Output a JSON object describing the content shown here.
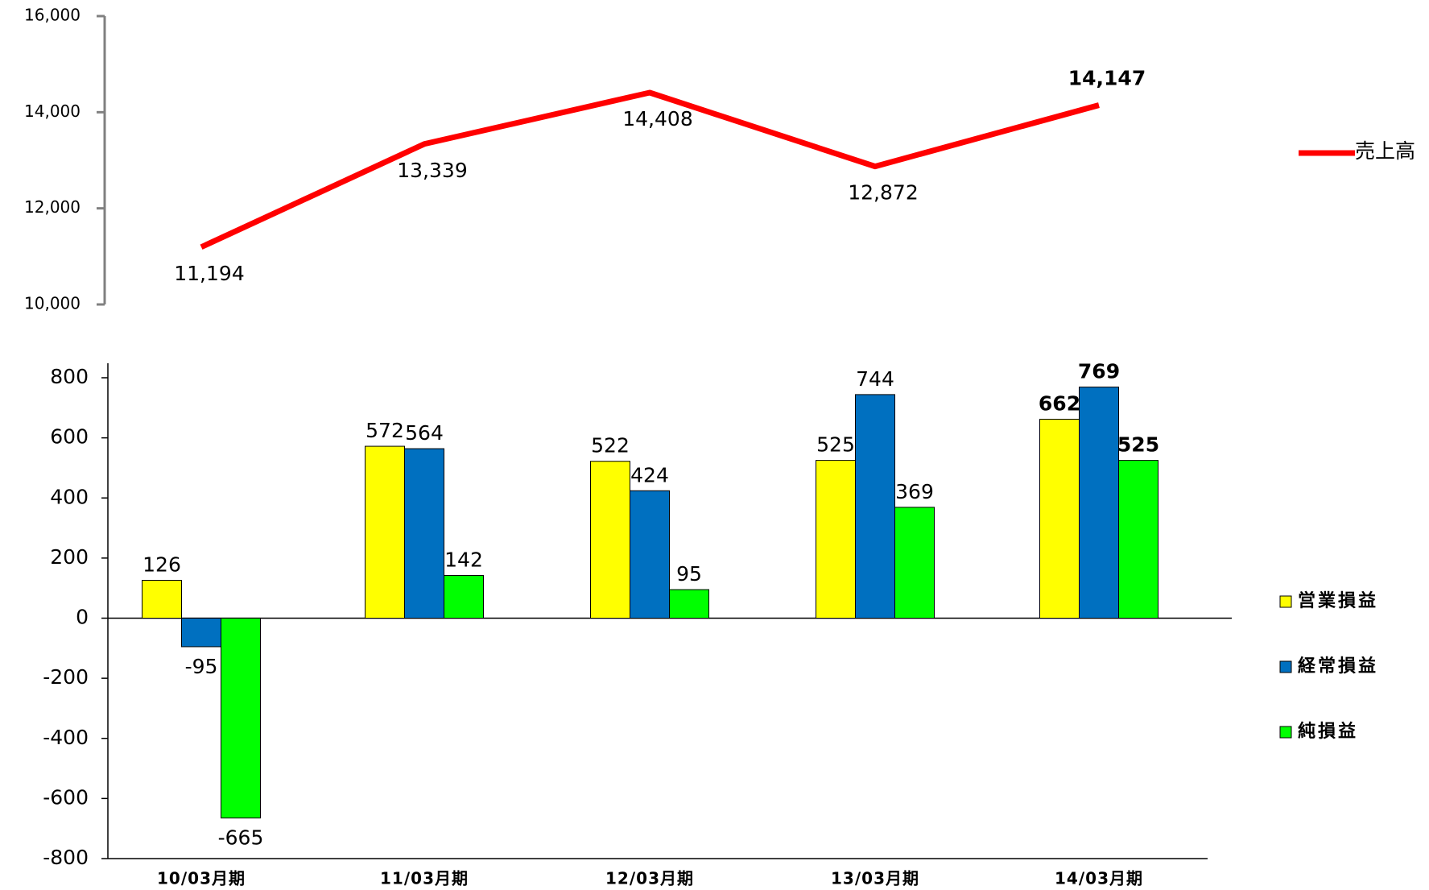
{
  "chart_data": [
    {
      "type": "line",
      "series": [
        {
          "name": "売上高",
          "color": "#ff0000",
          "values": [
            11194,
            13339,
            14408,
            12872,
            14147
          ],
          "value_labels": [
            "11,194",
            "13,339",
            "14,408",
            "12,872",
            "14,147"
          ]
        }
      ],
      "ylim": [
        10000,
        16000
      ],
      "yticks": [
        {
          "value": 10000,
          "label": "10,000"
        },
        {
          "value": 12000,
          "label": "12,000"
        },
        {
          "value": 14000,
          "label": "14,000"
        },
        {
          "value": 16000,
          "label": "16,000"
        }
      ],
      "legend": "right"
    },
    {
      "type": "bar",
      "categories": [
        "10/03月期",
        "11/03月期",
        "12/03月期",
        "13/03月期",
        "14/03月期"
      ],
      "series": [
        {
          "name": "営業損益",
          "color": "#ffff00",
          "values": [
            126,
            572,
            522,
            525,
            662
          ]
        },
        {
          "name": "経常損益",
          "color": "#0070c0",
          "values": [
            -95,
            564,
            424,
            744,
            769
          ]
        },
        {
          "name": "純損益",
          "color": "#00ff00",
          "values": [
            -665,
            142,
            95,
            369,
            525
          ]
        }
      ],
      "ylim": [
        -800,
        800
      ],
      "yticks": [
        -800,
        -600,
        -400,
        -200,
        0,
        200,
        400,
        600,
        800
      ],
      "legend": "right"
    }
  ]
}
